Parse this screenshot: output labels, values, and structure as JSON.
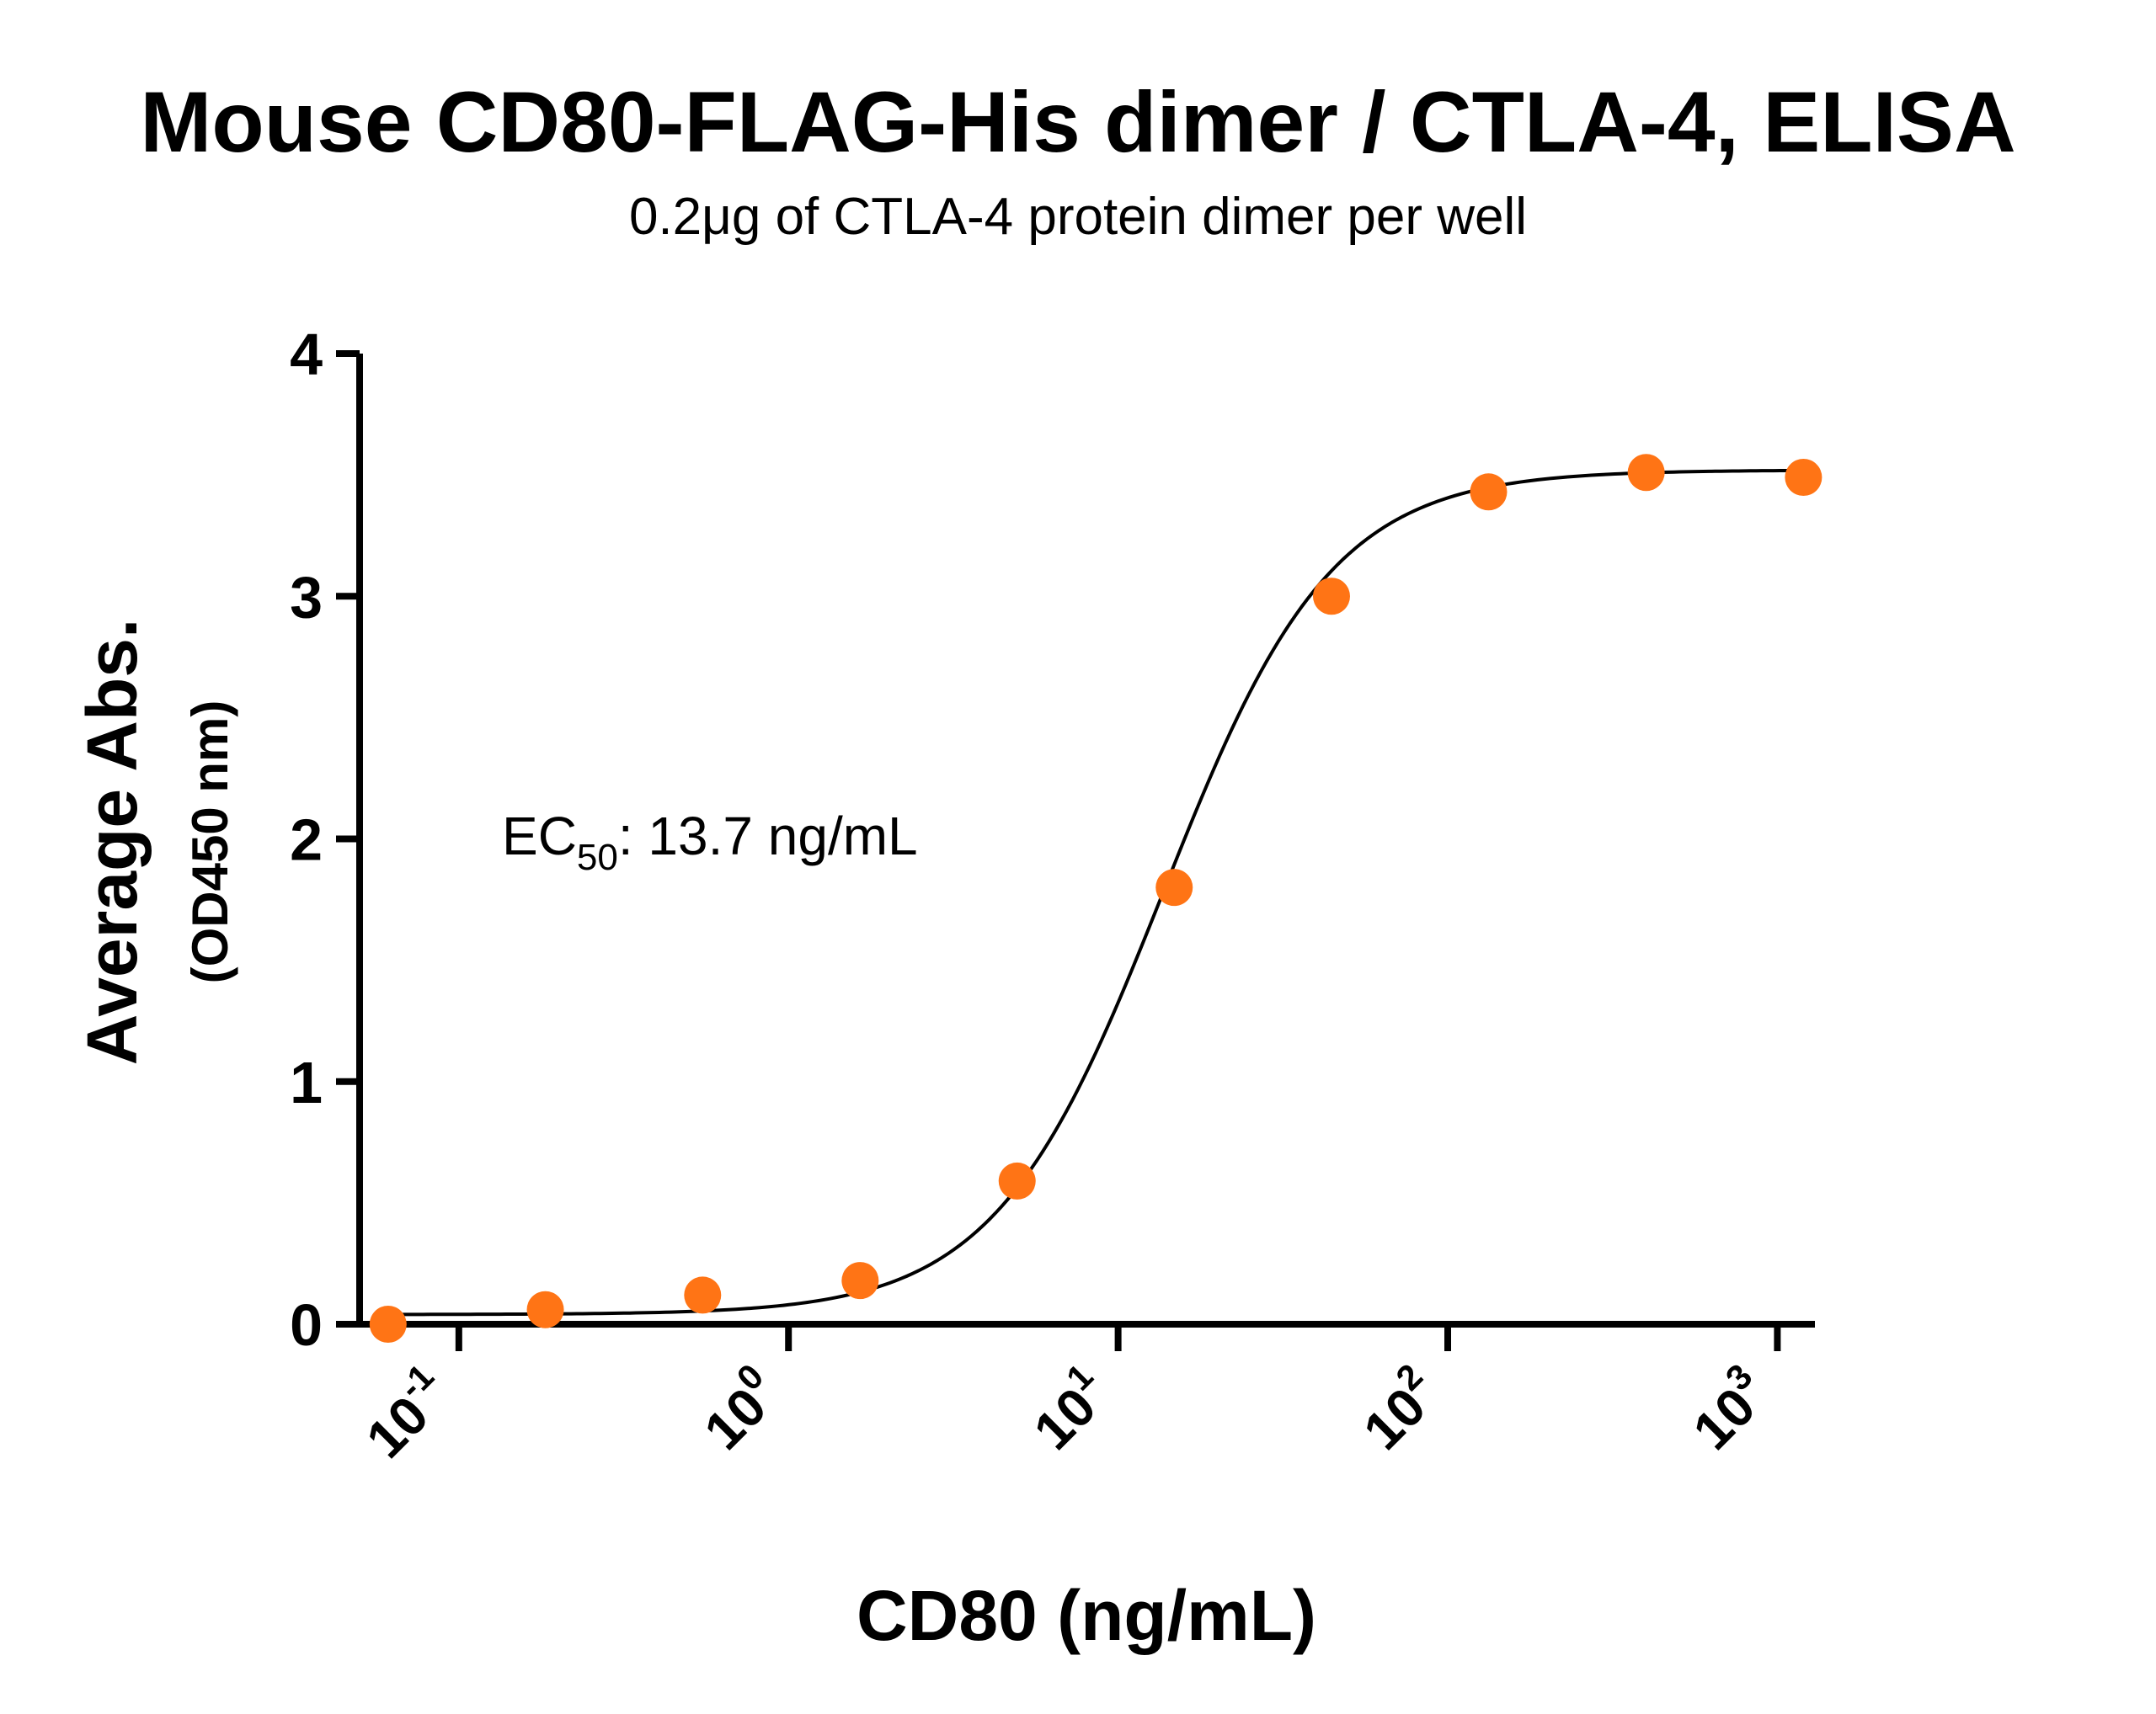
{
  "chart_data": {
    "type": "scatter",
    "title": "Mouse CD80-FLAG-His dimer / CTLA-4, ELISA",
    "subtitle": "0.2μg of CTLA-4 protein dimer per well",
    "xlabel": "CD80 (ng/mL)",
    "ylabel": "Average Abs.",
    "ylabel_unit": "(OD450 nm)",
    "x_scale": "log",
    "xlim": [
      0.05,
      1300
    ],
    "ylim": [
      0,
      4
    ],
    "yticks": [
      "0",
      "1",
      "2",
      "3",
      "4"
    ],
    "xticks": [
      {
        "base": "10",
        "exp": "-1",
        "value": 0.1
      },
      {
        "base": "10",
        "exp": "0",
        "value": 1
      },
      {
        "base": "10",
        "exp": "1",
        "value": 10
      },
      {
        "base": "10",
        "exp": "2",
        "value": 100
      },
      {
        "base": "10",
        "exp": "3",
        "value": 1000
      }
    ],
    "grid": false,
    "annotation": {
      "prefix": "EC",
      "sub": "50",
      "suffix": ": 13.7 ng/mL"
    },
    "series": [
      {
        "marker_color": "#FF7415",
        "line_color": "#000000",
        "points": [
          {
            "x": 0.061,
            "y": 0.0
          },
          {
            "x": 0.183,
            "y": 0.06
          },
          {
            "x": 0.549,
            "y": 0.12
          },
          {
            "x": 1.65,
            "y": 0.18
          },
          {
            "x": 4.94,
            "y": 0.59
          },
          {
            "x": 14.8,
            "y": 1.8
          },
          {
            "x": 44.4,
            "y": 3.0
          },
          {
            "x": 133,
            "y": 3.43
          },
          {
            "x": 400,
            "y": 3.51
          },
          {
            "x": 1200,
            "y": 3.49
          }
        ],
        "fit": {
          "bottom": 0.04,
          "top": 3.52,
          "ec50": 13.7,
          "hill": 1.7
        }
      }
    ]
  }
}
